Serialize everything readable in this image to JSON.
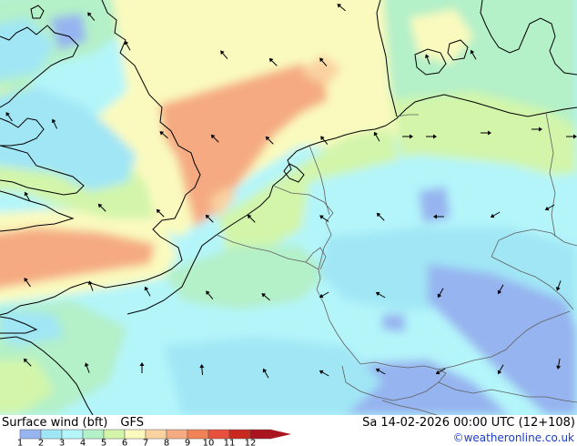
{
  "header": {
    "title": "Surface wind (bft)",
    "model": "GFS",
    "datetime": "Sa 14-02-2026 00:00 UTC (12+108)",
    "credit": "©weatheronline.co.uk"
  },
  "legend": {
    "labels": [
      "1",
      "2",
      "3",
      "4",
      "5",
      "6",
      "7",
      "8",
      "9",
      "10",
      "11",
      "12"
    ],
    "colors": [
      "#96b4f0",
      "#a0e6f5",
      "#b4f5fa",
      "#b4f0c8",
      "#d2f5aa",
      "#fafabe",
      "#fad2a0",
      "#f5aa82",
      "#f08255",
      "#e6503c",
      "#c8281e",
      "#aa141e"
    ]
  },
  "map_colors": {
    "bft1": "#96b4f0",
    "bft2": "#a0e6f5",
    "bft3": "#b4f5fa",
    "bft4": "#b4f0c8",
    "bft5": "#d2f5aa",
    "bft6": "#fafabe",
    "bft7": "#fad2a0",
    "bft8": "#f5aa82",
    "coast": "#000000",
    "border": "#606060"
  },
  "icons": {
    "arrow": "wind-arrow-icon",
    "legend_pointer": "triangle-right-icon"
  }
}
